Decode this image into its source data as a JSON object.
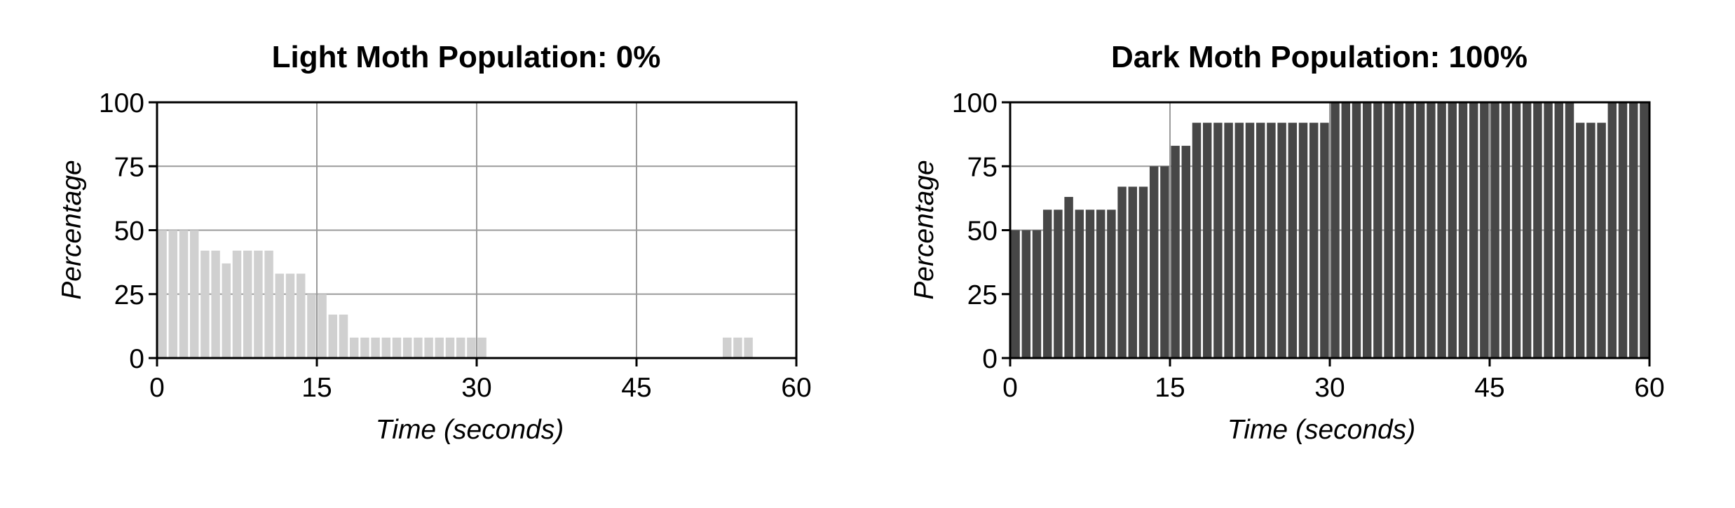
{
  "chart_data": [
    {
      "type": "bar",
      "title": "Light Moth Population: 0%",
      "xlabel": "Time (seconds)",
      "ylabel": "Percentage",
      "xlim": [
        0,
        60
      ],
      "ylim": [
        0,
        100
      ],
      "xticks": [
        "0",
        "15",
        "30",
        "45",
        "60"
      ],
      "yticks": [
        "0",
        "25",
        "50",
        "75",
        "100"
      ],
      "grid": true,
      "bar_color": "#d0d0d0",
      "bar_width_seconds": 1,
      "x": [
        0,
        1,
        2,
        3,
        4,
        5,
        6,
        7,
        8,
        9,
        10,
        11,
        12,
        13,
        14,
        15,
        16,
        17,
        18,
        19,
        20,
        21,
        22,
        23,
        24,
        25,
        26,
        27,
        28,
        29,
        30,
        31,
        32,
        33,
        34,
        35,
        36,
        37,
        38,
        39,
        40,
        41,
        42,
        43,
        44,
        45,
        46,
        47,
        48,
        49,
        50,
        51,
        52,
        53,
        54,
        55,
        56,
        57,
        58,
        59
      ],
      "values": [
        50,
        50,
        50,
        50,
        42,
        42,
        37,
        42,
        42,
        42,
        42,
        33,
        33,
        33,
        25,
        25,
        17,
        17,
        8,
        8,
        8,
        8,
        8,
        8,
        8,
        8,
        8,
        8,
        8,
        8,
        8,
        0,
        0,
        0,
        0,
        0,
        0,
        0,
        0,
        0,
        0,
        0,
        0,
        0,
        0,
        0,
        0,
        0,
        0,
        0,
        0,
        0,
        0,
        8,
        8,
        8,
        0,
        0,
        0,
        0
      ]
    },
    {
      "type": "bar",
      "title": "Dark Moth Population: 100%",
      "xlabel": "Time (seconds)",
      "ylabel": "Percentage",
      "xlim": [
        0,
        60
      ],
      "ylim": [
        0,
        100
      ],
      "xticks": [
        "0",
        "15",
        "30",
        "45",
        "60"
      ],
      "yticks": [
        "0",
        "25",
        "50",
        "75",
        "100"
      ],
      "grid": true,
      "bar_color": "#474747",
      "bar_width_seconds": 1,
      "x": [
        0,
        1,
        2,
        3,
        4,
        5,
        6,
        7,
        8,
        9,
        10,
        11,
        12,
        13,
        14,
        15,
        16,
        17,
        18,
        19,
        20,
        21,
        22,
        23,
        24,
        25,
        26,
        27,
        28,
        29,
        30,
        31,
        32,
        33,
        34,
        35,
        36,
        37,
        38,
        39,
        40,
        41,
        42,
        43,
        44,
        45,
        46,
        47,
        48,
        49,
        50,
        51,
        52,
        53,
        54,
        55,
        56,
        57,
        58,
        59
      ],
      "values": [
        50,
        50,
        50,
        58,
        58,
        63,
        58,
        58,
        58,
        58,
        67,
        67,
        67,
        75,
        75,
        83,
        83,
        92,
        92,
        92,
        92,
        92,
        92,
        92,
        92,
        92,
        92,
        92,
        92,
        92,
        100,
        100,
        100,
        100,
        100,
        100,
        100,
        100,
        100,
        100,
        100,
        100,
        100,
        100,
        100,
        100,
        100,
        100,
        100,
        100,
        100,
        100,
        100,
        92,
        92,
        92,
        100,
        100,
        100,
        100
      ]
    }
  ]
}
